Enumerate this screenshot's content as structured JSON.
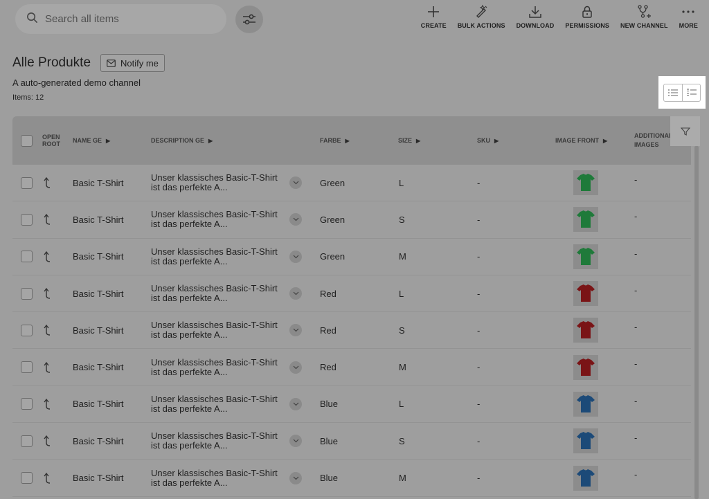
{
  "search": {
    "placeholder": "Search all items"
  },
  "toolbar": [
    {
      "label": "CREATE",
      "icon": "plus-icon"
    },
    {
      "label": "BULK ACTIONS",
      "icon": "magic-pen-icon"
    },
    {
      "label": "DOWNLOAD",
      "icon": "download-icon"
    },
    {
      "label": "PERMISSIONS",
      "icon": "lock-icon"
    },
    {
      "label": "NEW CHANNEL",
      "icon": "branch-plus-icon"
    },
    {
      "label": "MORE",
      "icon": "more-dots-icon"
    }
  ],
  "page": {
    "title": "Alle Produkte",
    "notify_label": "Notify me",
    "subtitle": "A auto-generated demo channel",
    "items_count": "Items: 12"
  },
  "columns": {
    "open_root": "OPEN ROOT",
    "name": "NAME GE",
    "description": "DESCRIPTION GE",
    "farbe": "FARBE",
    "size": "SIZE",
    "sku": "SKU",
    "image_front": "IMAGE FRONT",
    "additional_images": "ADDITIONAL IMAGES"
  },
  "colors": {
    "Green": "#1f7a3a",
    "Red": "#7a1416",
    "Blue": "#1c4a78"
  },
  "rows": [
    {
      "name": "Basic T-Shirt",
      "description": "Unser klassisches Basic-T-Shirt ist das perfekte A...",
      "farbe": "Green",
      "size": "L",
      "sku": "-",
      "additional": "-"
    },
    {
      "name": "Basic T-Shirt",
      "description": "Unser klassisches Basic-T-Shirt ist das perfekte A...",
      "farbe": "Green",
      "size": "S",
      "sku": "-",
      "additional": "-"
    },
    {
      "name": "Basic T-Shirt",
      "description": "Unser klassisches Basic-T-Shirt ist das perfekte A...",
      "farbe": "Green",
      "size": "M",
      "sku": "-",
      "additional": "-"
    },
    {
      "name": "Basic T-Shirt",
      "description": "Unser klassisches Basic-T-Shirt ist das perfekte A...",
      "farbe": "Red",
      "size": "L",
      "sku": "-",
      "additional": "-"
    },
    {
      "name": "Basic T-Shirt",
      "description": "Unser klassisches Basic-T-Shirt ist das perfekte A...",
      "farbe": "Red",
      "size": "S",
      "sku": "-",
      "additional": "-"
    },
    {
      "name": "Basic T-Shirt",
      "description": "Unser klassisches Basic-T-Shirt ist das perfekte A...",
      "farbe": "Red",
      "size": "M",
      "sku": "-",
      "additional": "-"
    },
    {
      "name": "Basic T-Shirt",
      "description": "Unser klassisches Basic-T-Shirt ist das perfekte A...",
      "farbe": "Blue",
      "size": "L",
      "sku": "-",
      "additional": "-"
    },
    {
      "name": "Basic T-Shirt",
      "description": "Unser klassisches Basic-T-Shirt ist das perfekte A...",
      "farbe": "Blue",
      "size": "S",
      "sku": "-",
      "additional": "-"
    },
    {
      "name": "Basic T-Shirt",
      "description": "Unser klassisches Basic-T-Shirt ist das perfekte A...",
      "farbe": "Blue",
      "size": "M",
      "sku": "-",
      "additional": "-"
    }
  ]
}
